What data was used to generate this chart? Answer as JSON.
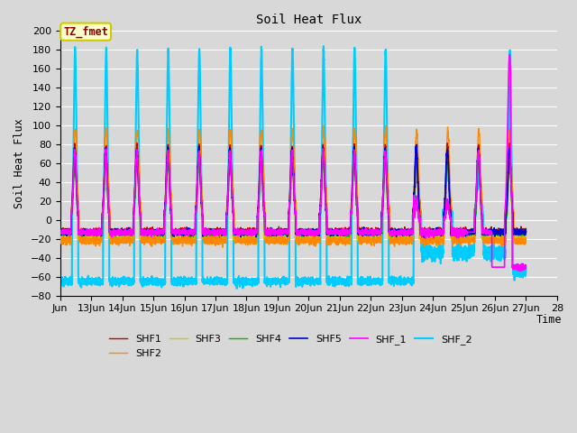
{
  "title": "Soil Heat Flux",
  "ylabel": "Soil Heat Flux",
  "xlabel": "Time",
  "annotation_text": "TZ_fmet",
  "annotation_bg": "#FFFFCC",
  "annotation_border": "#CCCC00",
  "annotation_text_color": "#880000",
  "ylim": [
    -80,
    200
  ],
  "yticks": [
    -80,
    -60,
    -40,
    -20,
    0,
    20,
    40,
    60,
    80,
    100,
    120,
    140,
    160,
    180,
    200
  ],
  "xtick_labels": [
    "Jun",
    "13Jun",
    "14Jun",
    "15Jun",
    "16Jun",
    "17Jun",
    "18Jun",
    "19Jun",
    "20Jun",
    "21Jun",
    "22Jun",
    "23Jun",
    "24Jun",
    "25Jun",
    "26Jun",
    "27Jun",
    "28"
  ],
  "series_colors": {
    "SHF1": "#CC0000",
    "SHF2": "#FF8800",
    "SHF3": "#CCCC00",
    "SHF4": "#00BB00",
    "SHF5": "#0000CC",
    "SHF_1": "#FF00FF",
    "SHF_2": "#00CCFF"
  },
  "series_widths": {
    "SHF1": 1.0,
    "SHF2": 1.0,
    "SHF3": 1.0,
    "SHF4": 1.0,
    "SHF5": 1.2,
    "SHF_1": 1.2,
    "SHF_2": 1.5
  },
  "background_color": "#D8D8D8",
  "plot_bg_color": "#D8D8D8",
  "grid_color": "#FFFFFF",
  "figsize": [
    6.4,
    4.8
  ],
  "dpi": 100
}
